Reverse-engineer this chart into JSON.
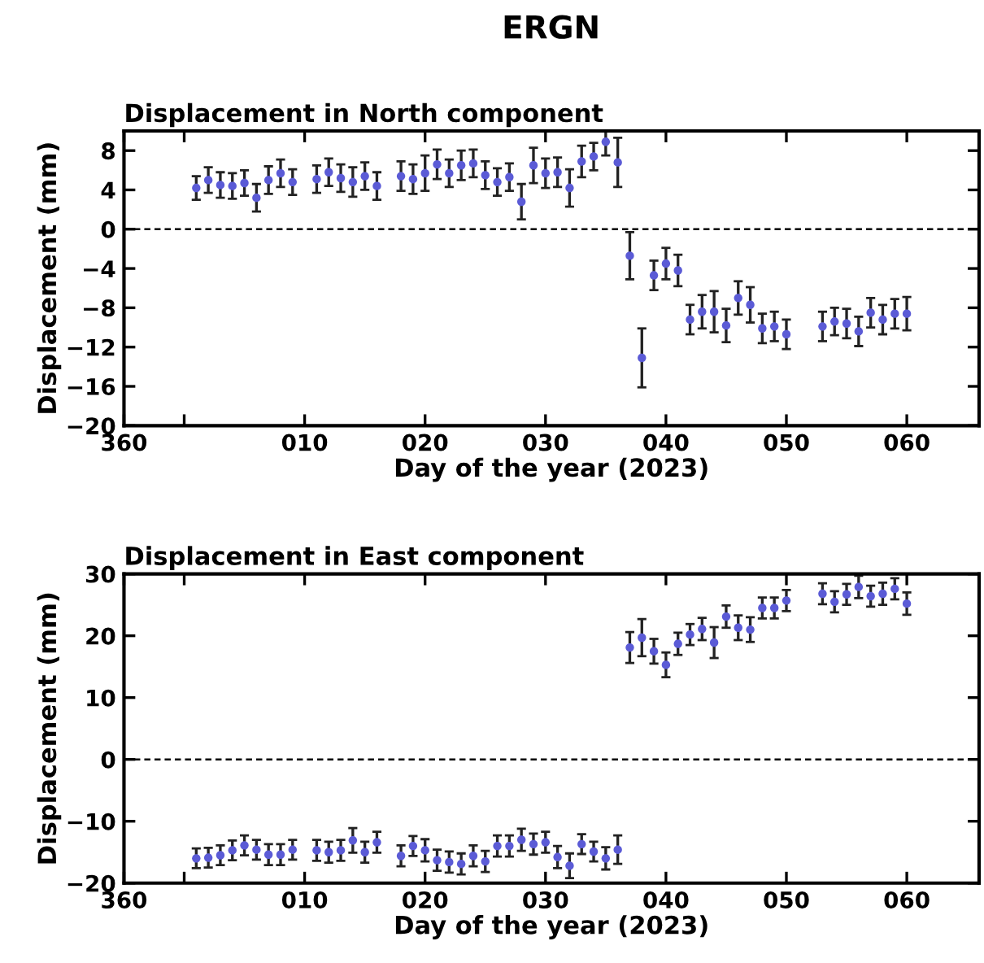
{
  "chart_data": [
    {
      "type": "scatter",
      "title": "ERGN",
      "subtitle": "Displacement in North component",
      "xlabel": "Day of the year (2023)",
      "ylabel": "Displacement (mm)",
      "marker": "circle",
      "grid": false,
      "legend": false,
      "x": [
        "2023-01-01",
        "2023-01-02",
        "2023-01-03",
        "2023-01-04",
        "2023-01-05",
        "2023-01-06",
        "2023-01-07",
        "2023-01-08",
        "2023-01-09",
        "2023-01-11",
        "2023-01-12",
        "2023-01-13",
        "2023-01-14",
        "2023-01-15",
        "2023-01-16",
        "2023-01-18",
        "2023-01-19",
        "2023-01-20",
        "2023-01-21",
        "2023-01-22",
        "2023-01-23",
        "2023-01-24",
        "2023-01-25",
        "2023-01-26",
        "2023-01-27",
        "2023-01-28",
        "2023-01-29",
        "2023-01-30",
        "2023-01-31",
        "2023-02-01",
        "2023-02-02",
        "2023-02-03",
        "2023-02-04",
        "2023-02-05",
        "2023-02-06",
        "2023-02-07",
        "2023-02-08",
        "2023-02-09",
        "2023-02-10",
        "2023-02-11",
        "2023-02-12",
        "2023-02-13",
        "2023-02-14",
        "2023-02-15",
        "2023-02-16",
        "2023-02-17",
        "2023-02-18",
        "2023-02-19",
        "2023-02-22",
        "2023-02-23",
        "2023-02-24",
        "2023-02-25",
        "2023-02-26",
        "2023-02-27",
        "2023-02-28",
        "2023-03-01"
      ],
      "series": [
        {
          "color": "#5b5bd6",
          "values": [
            4.2,
            5.0,
            4.5,
            4.4,
            4.7,
            3.2,
            5.0,
            5.7,
            4.8,
            5.1,
            5.8,
            5.2,
            4.8,
            5.4,
            4.4,
            5.4,
            5.1,
            5.7,
            6.6,
            5.7,
            6.5,
            6.7,
            5.5,
            4.8,
            5.3,
            2.8,
            6.5,
            5.7,
            5.8,
            4.2,
            6.9,
            7.4,
            8.9,
            6.8,
            -2.7,
            -13.1,
            -4.7,
            -3.5,
            -4.2,
            -9.2,
            -8.4,
            -8.4,
            -9.8,
            -7.0,
            -7.7,
            -10.1,
            -9.9,
            -10.7,
            -9.9,
            -9.4,
            -9.6,
            -10.4,
            -8.5,
            -9.2,
            -8.6,
            -8.6
          ],
          "errors": [
            1.2,
            1.3,
            1.3,
            1.3,
            1.3,
            1.4,
            1.4,
            1.4,
            1.3,
            1.4,
            1.4,
            1.4,
            1.5,
            1.4,
            1.4,
            1.5,
            1.5,
            1.8,
            1.5,
            1.4,
            1.5,
            1.4,
            1.4,
            1.4,
            1.4,
            1.8,
            1.8,
            1.5,
            1.5,
            1.9,
            1.6,
            1.4,
            1.4,
            2.5,
            2.4,
            3.0,
            1.5,
            1.6,
            1.6,
            1.5,
            1.7,
            2.1,
            1.7,
            1.7,
            1.8,
            1.5,
            1.5,
            1.5,
            1.5,
            1.4,
            1.5,
            1.5,
            1.5,
            1.5,
            1.5,
            1.7
          ]
        }
      ],
      "xlim": [
        "2022-12-26",
        "2023-03-07"
      ],
      "xticks": [
        {
          "value": "2022-12-26",
          "label": "360"
        },
        {
          "value": "2022-12-31",
          "label": null
        },
        {
          "value": "2023-01-10",
          "label": "010"
        },
        {
          "value": "2023-01-20",
          "label": "020"
        },
        {
          "value": "2023-01-30",
          "label": "030"
        },
        {
          "value": "2023-02-09",
          "label": "040"
        },
        {
          "value": "2023-02-19",
          "label": "050"
        },
        {
          "value": "2023-03-01",
          "label": "060"
        }
      ],
      "ylim": [
        -20,
        10
      ],
      "yticks": [
        -20,
        -16,
        -12,
        -8,
        -4,
        0,
        4,
        8
      ],
      "ref_lines": [
        {
          "axis": "y",
          "value": 0,
          "color": "#000000",
          "line_style": "dashed"
        }
      ]
    },
    {
      "type": "scatter",
      "title": "Displacement in East component",
      "xlabel": "Day of the year (2023)",
      "ylabel": "Displacement (mm)",
      "marker": "circle",
      "grid": false,
      "legend": false,
      "x": [
        "2023-01-01",
        "2023-01-02",
        "2023-01-03",
        "2023-01-04",
        "2023-01-05",
        "2023-01-06",
        "2023-01-07",
        "2023-01-08",
        "2023-01-09",
        "2023-01-11",
        "2023-01-12",
        "2023-01-13",
        "2023-01-14",
        "2023-01-15",
        "2023-01-16",
        "2023-01-18",
        "2023-01-19",
        "2023-01-20",
        "2023-01-21",
        "2023-01-22",
        "2023-01-23",
        "2023-01-24",
        "2023-01-25",
        "2023-01-26",
        "2023-01-27",
        "2023-01-28",
        "2023-01-29",
        "2023-01-30",
        "2023-01-31",
        "2023-02-01",
        "2023-02-02",
        "2023-02-03",
        "2023-02-04",
        "2023-02-05",
        "2023-02-06",
        "2023-02-07",
        "2023-02-08",
        "2023-02-09",
        "2023-02-10",
        "2023-02-11",
        "2023-02-12",
        "2023-02-13",
        "2023-02-14",
        "2023-02-15",
        "2023-02-16",
        "2023-02-17",
        "2023-02-18",
        "2023-02-19",
        "2023-02-22",
        "2023-02-23",
        "2023-02-24",
        "2023-02-25",
        "2023-02-26",
        "2023-02-27",
        "2023-02-28",
        "2023-03-01"
      ],
      "series": [
        {
          "color": "#5b5bd6",
          "values": [
            -16.0,
            -15.9,
            -15.5,
            -14.7,
            -13.9,
            -14.6,
            -15.4,
            -15.4,
            -14.6,
            -14.7,
            -15.0,
            -14.7,
            -13.1,
            -15.0,
            -13.4,
            -15.6,
            -14.0,
            -14.7,
            -16.3,
            -16.6,
            -16.9,
            -15.6,
            -16.5,
            -14.0,
            -14.0,
            -13.0,
            -13.7,
            -13.4,
            -15.8,
            -17.2,
            -13.7,
            -14.9,
            -16.0,
            -14.6,
            18.1,
            19.7,
            17.5,
            15.3,
            18.7,
            20.2,
            21.1,
            18.9,
            23.1,
            21.3,
            21.0,
            24.5,
            24.5,
            25.7,
            26.8,
            25.5,
            26.7,
            27.9,
            26.4,
            26.8,
            27.6,
            25.2
          ],
          "errors": [
            1.6,
            1.6,
            1.6,
            1.6,
            1.6,
            1.6,
            1.7,
            1.7,
            1.6,
            1.7,
            1.7,
            1.7,
            2.0,
            1.7,
            1.7,
            1.7,
            1.6,
            1.8,
            1.7,
            1.7,
            1.7,
            1.7,
            1.7,
            1.7,
            1.7,
            1.8,
            1.7,
            1.7,
            1.8,
            2.0,
            1.6,
            1.6,
            1.8,
            2.3,
            2.5,
            3.0,
            2.0,
            2.0,
            1.8,
            1.7,
            1.8,
            2.5,
            1.8,
            2.0,
            2.0,
            1.7,
            1.7,
            1.7,
            1.7,
            1.7,
            1.7,
            1.8,
            1.7,
            1.8,
            1.7,
            1.8
          ]
        }
      ],
      "xlim": [
        "2022-12-26",
        "2023-03-07"
      ],
      "xticks": [
        {
          "value": "2022-12-26",
          "label": "360"
        },
        {
          "value": "2022-12-31",
          "label": null
        },
        {
          "value": "2023-01-10",
          "label": "010"
        },
        {
          "value": "2023-01-20",
          "label": "020"
        },
        {
          "value": "2023-01-30",
          "label": "030"
        },
        {
          "value": "2023-02-09",
          "label": "040"
        },
        {
          "value": "2023-02-19",
          "label": "050"
        },
        {
          "value": "2023-03-01",
          "label": "060"
        }
      ],
      "ylim": [
        -20,
        30
      ],
      "yticks": [
        -20,
        -10,
        0,
        10,
        20,
        30
      ],
      "ref_lines": [
        {
          "axis": "y",
          "value": 0,
          "color": "#000000",
          "line_style": "dashed"
        }
      ]
    }
  ]
}
